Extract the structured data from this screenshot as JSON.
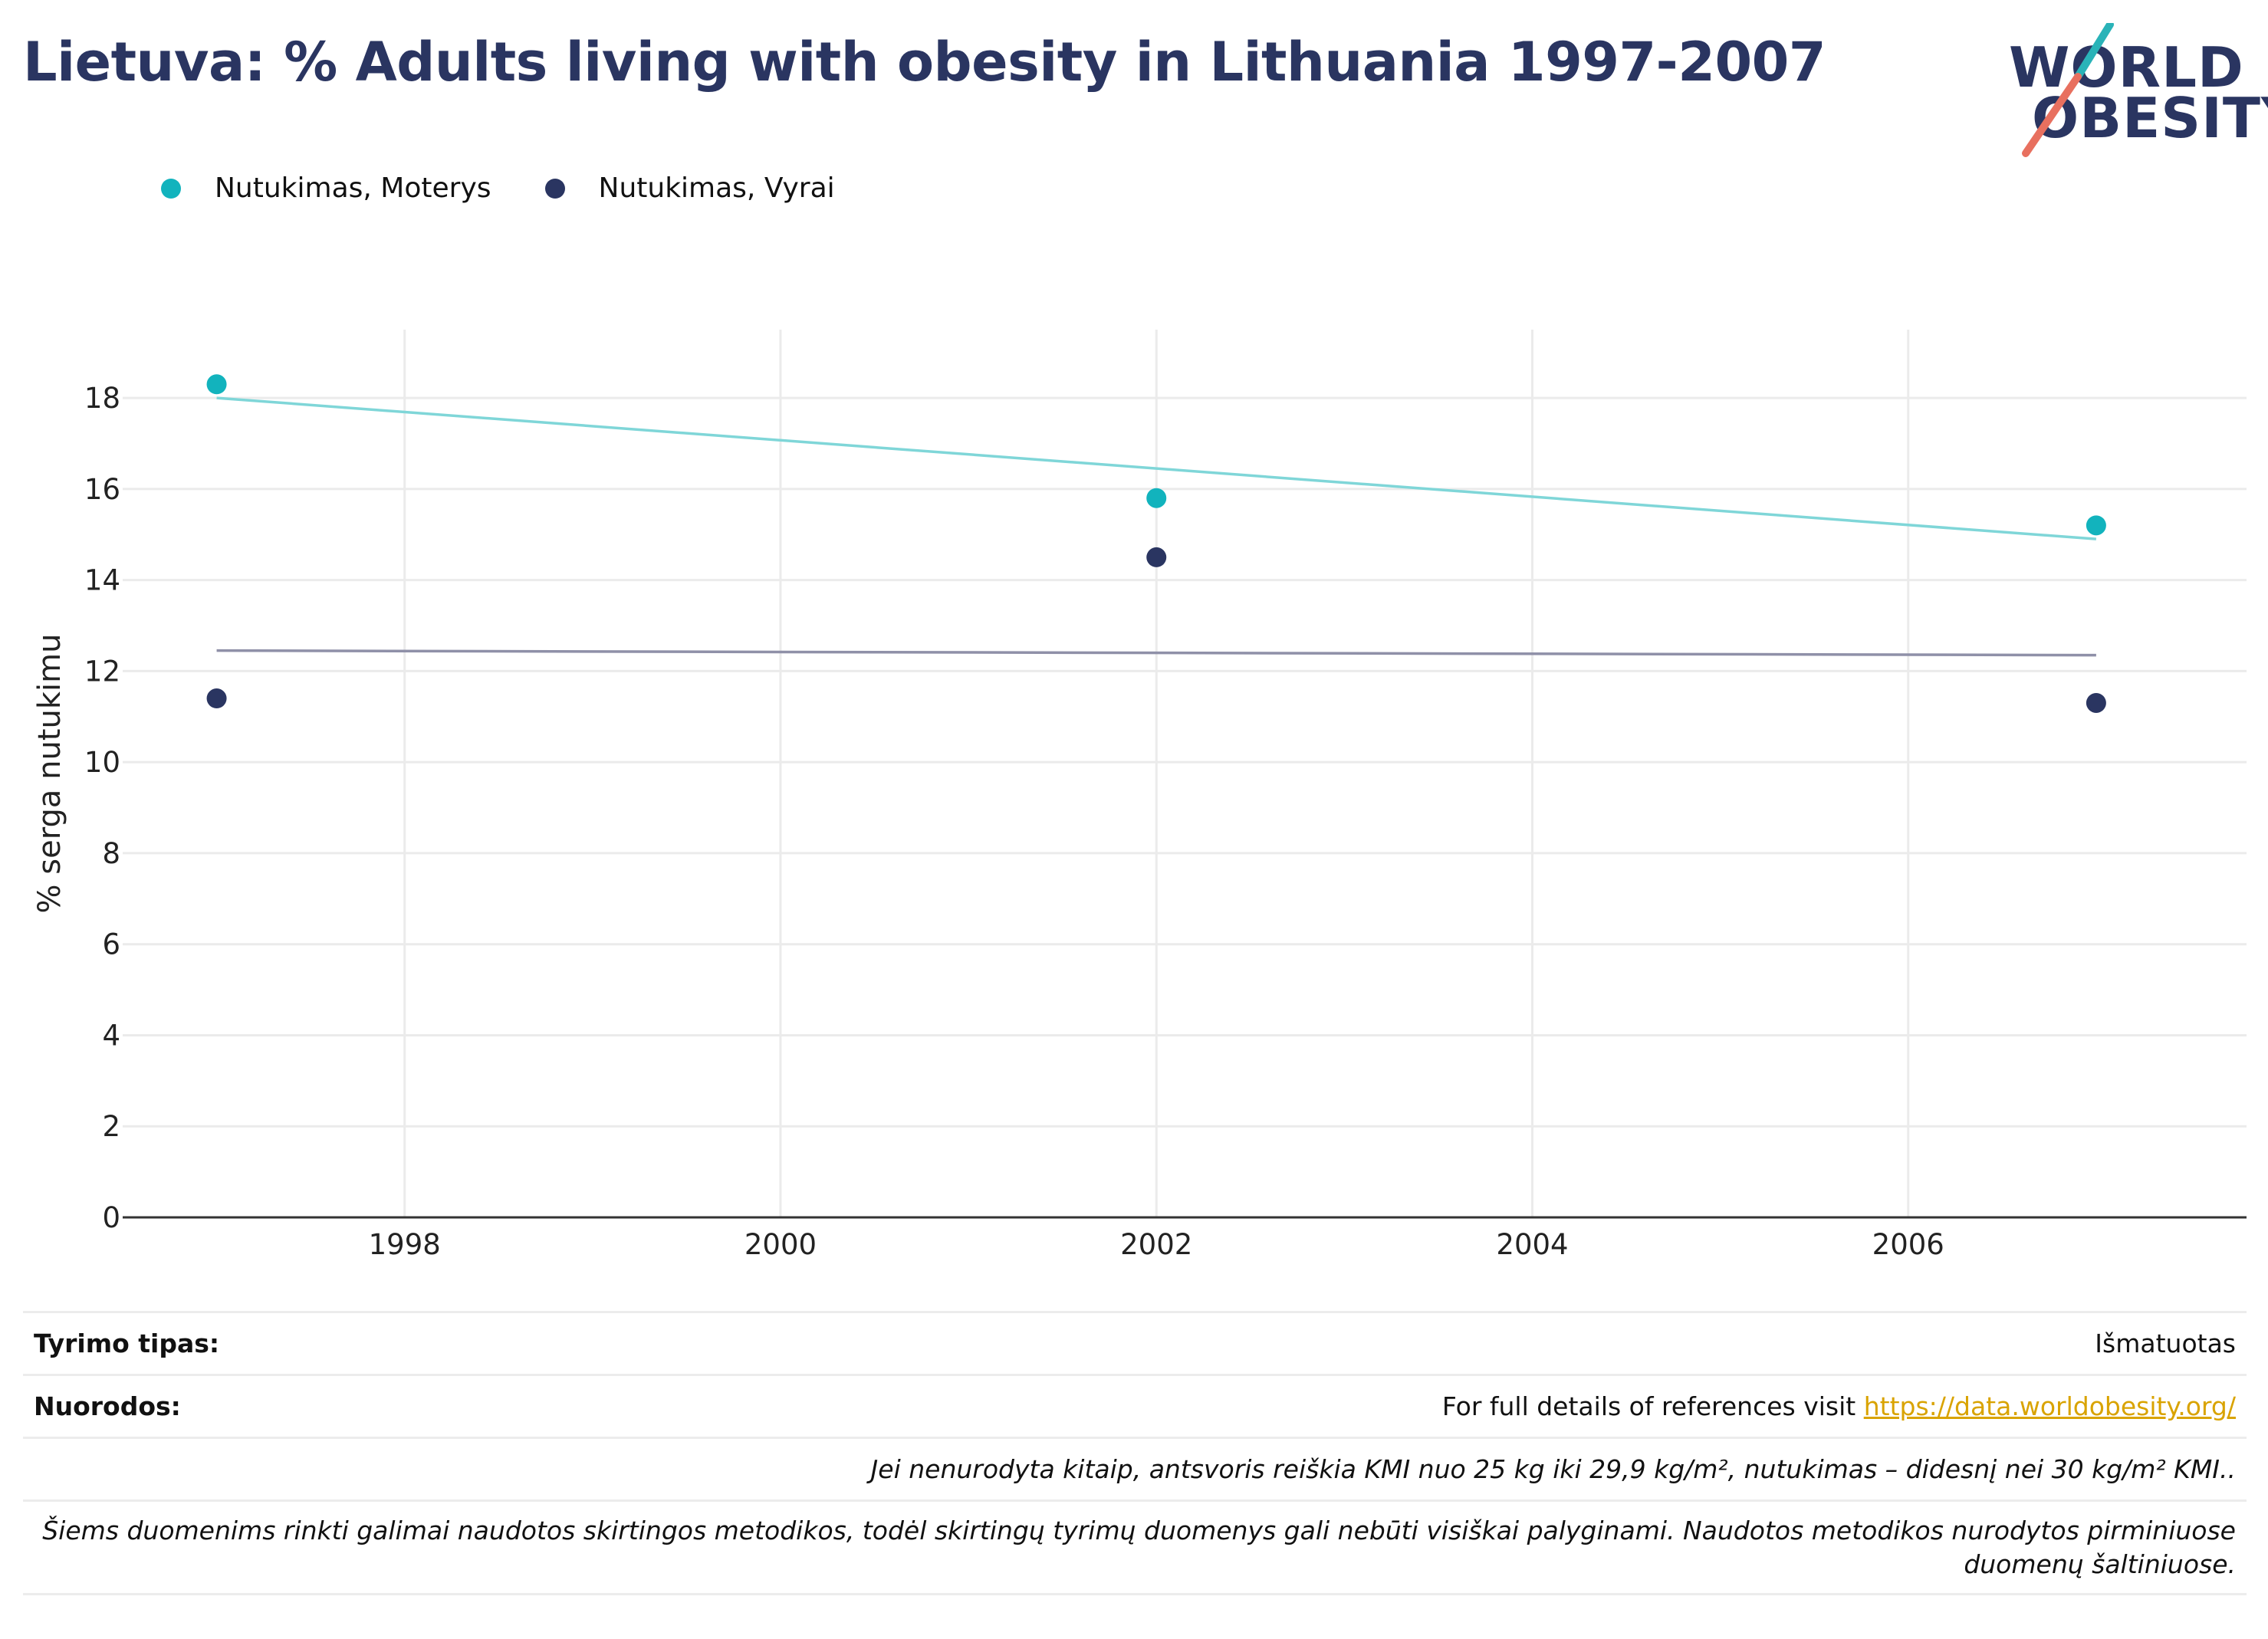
{
  "title": "Lietuva: % Adults living with obesity in Lithuania 1997-2007",
  "logo": {
    "line1": "WORLD",
    "line2": "OBESITY",
    "slash_top_color": "#2ab3b8",
    "slash_bottom_color": "#e8705f"
  },
  "colors": {
    "women": "#12b3bd",
    "men": "#2a3561",
    "women_trend": "#7fd6d8",
    "men_trend": "#8f90a8",
    "grid": "#ebebeb",
    "axis": "#333333"
  },
  "chart_data": {
    "type": "scatter",
    "ylabel": "% serga nutukimu",
    "xlabel": "",
    "xlim": [
      1996.5,
      2007.8
    ],
    "ylim": [
      0,
      19.5
    ],
    "x_ticks": [
      1998,
      2000,
      2002,
      2004,
      2006
    ],
    "y_ticks": [
      0,
      2,
      4,
      6,
      8,
      10,
      12,
      14,
      16,
      18
    ],
    "legend_position": "top-left",
    "grid": true,
    "series": [
      {
        "name": "Nutukimas, Moterys",
        "x": [
          1997,
          2002,
          2007
        ],
        "y": [
          18.3,
          15.8,
          15.2
        ],
        "trend": [
          [
            1997,
            18.0
          ],
          [
            2007,
            14.9
          ]
        ]
      },
      {
        "name": "Nutukimas, Vyrai",
        "x": [
          1997,
          2002,
          2007
        ],
        "y": [
          11.4,
          14.5,
          11.3
        ],
        "trend": [
          [
            1997,
            12.45
          ],
          [
            2007,
            12.35
          ]
        ]
      }
    ]
  },
  "footer": {
    "study_type_label": "Tyrimo tipas:",
    "study_type_value": "Išmatuotas",
    "references_label": "Nuorodos:",
    "references_text": "For full details of references visit ",
    "references_link": "https://data.worldobesity.org/",
    "note1": "Jei nenurodyta kitaip, antsvoris reiškia KMI nuo 25 kg iki 29,9 kg/m², nutukimas – didesnį nei 30 kg/m² KMI..",
    "note2": "Šiems duomenims rinkti galimai naudotos skirtingos metodikos, todėl skirtingų tyrimų duomenys gali nebūti visiškai palyginami. Naudotos metodikos nurodytos pirminiuose duomenų šaltiniuose."
  }
}
